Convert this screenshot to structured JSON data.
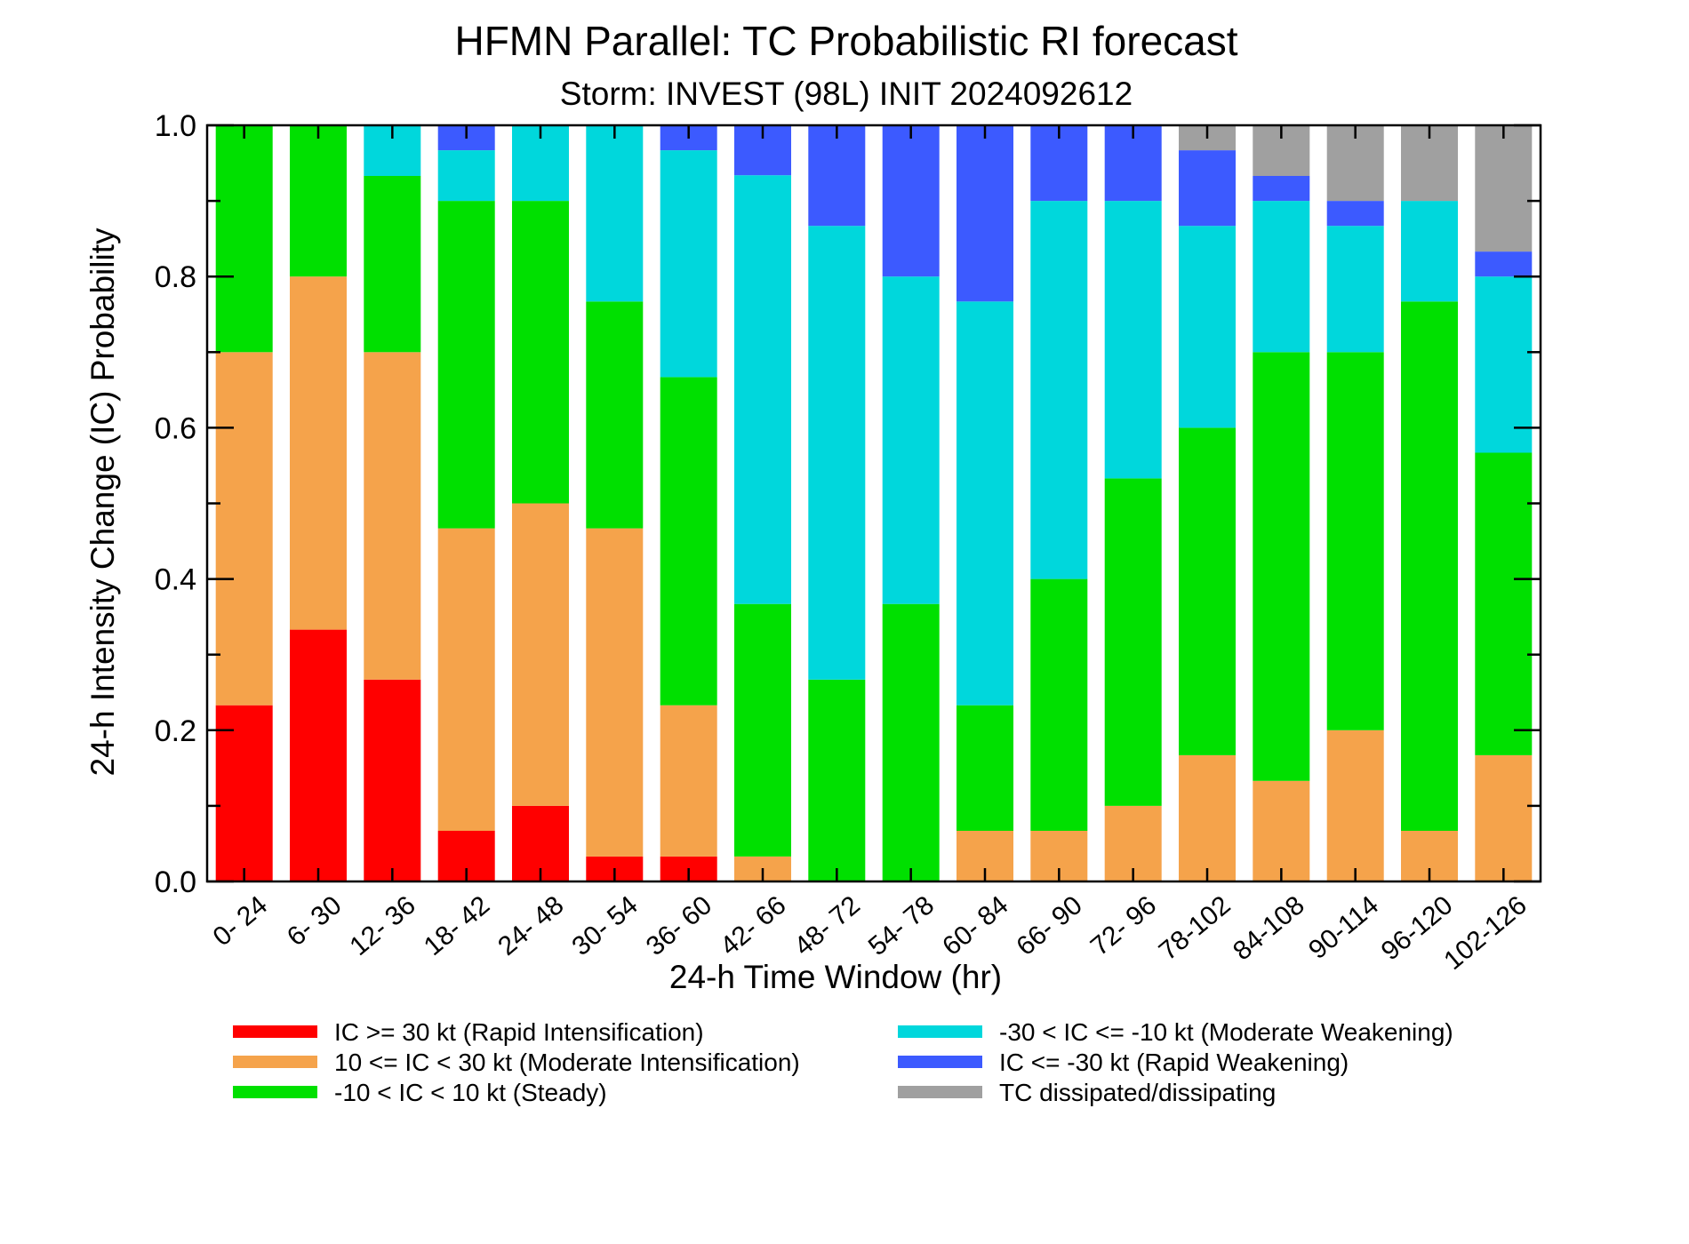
{
  "chart_data": {
    "type": "bar",
    "stacked": true,
    "title": "HFMN Parallel: TC Probabilistic RI forecast",
    "subtitle": "Storm: INVEST (98L) INIT 2024092612",
    "xlabel": "24-h Time Window (hr)",
    "ylabel": "24-h Intensity Change (IC) Probability",
    "ylim": [
      0,
      1
    ],
    "yticks": [
      "0.0",
      "0.2",
      "0.4",
      "0.6",
      "0.8",
      "1.0"
    ],
    "grid": false,
    "legend_position": "bottom",
    "categories": [
      "0- 24",
      "6- 30",
      "12- 36",
      "18- 42",
      "24- 48",
      "30- 54",
      "36- 60",
      "42- 66",
      "48- 72",
      "54- 78",
      "60- 84",
      "66- 90",
      "72- 96",
      "78-102",
      "84-108",
      "90-114",
      "96-120",
      "102-126"
    ],
    "series": [
      {
        "name": "IC >= 30 kt (Rapid Intensification)",
        "color": "#ff0000",
        "values": [
          0.233,
          0.333,
          0.267,
          0.067,
          0.1,
          0.033,
          0.033,
          0,
          0,
          0,
          0,
          0,
          0,
          0,
          0,
          0,
          0,
          0
        ]
      },
      {
        "name": "10 <= IC < 30 kt (Moderate Intensification)",
        "color": "#f5a34b",
        "values": [
          0.467,
          0.467,
          0.433,
          0.4,
          0.4,
          0.434,
          0.2,
          0.033,
          0,
          0,
          0.067,
          0.067,
          0.1,
          0.167,
          0.133,
          0.2,
          0.067,
          0.167
        ]
      },
      {
        "name": "-10 < IC < 10 kt (Steady)",
        "color": "#00e000",
        "values": [
          0.3,
          0.2,
          0.233,
          0.433,
          0.4,
          0.3,
          0.434,
          0.334,
          0.267,
          0.367,
          0.166,
          0.333,
          0.433,
          0.433,
          0.567,
          0.5,
          0.7,
          0.4
        ]
      },
      {
        "name": "-30 < IC <= -10 kt (Moderate Weakening)",
        "color": "#00d7dc",
        "values": [
          0,
          0,
          0.067,
          0.067,
          0.1,
          0.233,
          0.3,
          0.567,
          0.6,
          0.433,
          0.534,
          0.5,
          0.367,
          0.267,
          0.2,
          0.167,
          0.133,
          0.233
        ]
      },
      {
        "name": "IC <= -30 kt (Rapid Weakening)",
        "color": "#3c5aff",
        "values": [
          0,
          0,
          0,
          0.033,
          0,
          0,
          0.033,
          0.066,
          0.133,
          0.2,
          0.233,
          0.1,
          0.1,
          0.1,
          0.033,
          0.033,
          0,
          0.033
        ]
      },
      {
        "name": "TC dissipated/dissipating",
        "color": "#a0a0a0",
        "values": [
          0,
          0,
          0,
          0,
          0,
          0,
          0,
          0,
          0,
          0,
          0,
          0,
          0,
          0.033,
          0.067,
          0.1,
          0.1,
          0.167
        ]
      }
    ]
  }
}
